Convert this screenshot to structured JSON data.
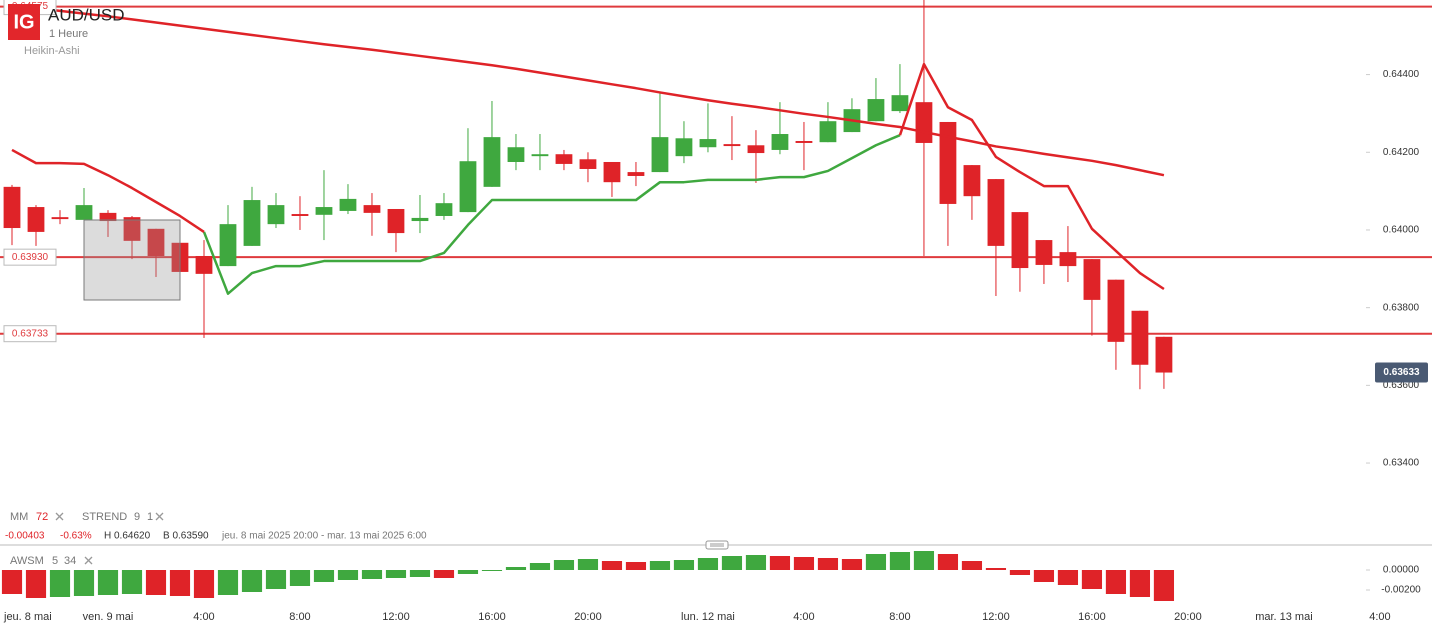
{
  "chart_data": {
    "type": "candlestick",
    "logo": "IG",
    "title": "AUD/USD",
    "subtitle": "1 Heure",
    "chart_style": "Heikin-Ashi",
    "up_color": "#3fa83f",
    "down_color": "#df2328",
    "xlim": [
      -0.5,
      59.17
    ],
    "xticks": [
      {
        "value": 0,
        "label": "jeu. 8 mai"
      },
      {
        "value": 4,
        "label": "ven. 9 mai"
      },
      {
        "value": 8,
        "label": "4:00"
      },
      {
        "value": 12,
        "label": "8:00"
      },
      {
        "value": 16,
        "label": "12:00"
      },
      {
        "value": 20,
        "label": "16:00"
      },
      {
        "value": 24,
        "label": "20:00"
      },
      {
        "value": 29,
        "label": "lun. 12 mai"
      },
      {
        "value": 33,
        "label": "4:00"
      },
      {
        "value": 37,
        "label": "8:00"
      },
      {
        "value": 41,
        "label": "12:00"
      },
      {
        "value": 45,
        "label": "16:00"
      },
      {
        "value": 49,
        "label": "20:00"
      },
      {
        "value": 53,
        "label": "mar. 13 mai"
      },
      {
        "value": 57,
        "label": "4:00"
      }
    ],
    "ylim": [
      0.63292,
      0.64592
    ],
    "yticks": [
      {
        "value": 0.644,
        "label": "0.64400"
      },
      {
        "value": 0.642,
        "label": "0.64200"
      },
      {
        "value": 0.64,
        "label": "0.64000"
      },
      {
        "value": 0.638,
        "label": "0.63800"
      },
      {
        "value": 0.636,
        "label": "0.63600"
      },
      {
        "value": 0.634,
        "label": "0.63400"
      }
    ],
    "candles": {
      "open": [
        0.64111,
        0.64059,
        0.64033,
        0.64026,
        0.64044,
        0.64033,
        0.64003,
        0.63967,
        0.63933,
        0.63907,
        0.63959,
        0.64015,
        0.64041,
        0.64039,
        0.64049,
        0.64064,
        0.64054,
        0.64023,
        0.64036,
        0.64046,
        0.64111,
        0.64175,
        0.6419,
        0.64195,
        0.64182,
        0.64175,
        0.64149,
        0.64149,
        0.6419,
        0.64213,
        0.64221,
        0.64218,
        0.64206,
        0.64229,
        0.64226,
        0.64252,
        0.6428,
        0.64306,
        0.64329,
        0.64278,
        0.64167,
        0.64131,
        0.64046,
        0.63974,
        0.63943,
        0.63925,
        0.63872,
        0.63792,
        0.63725
      ],
      "high": [
        0.64116,
        0.64064,
        0.64051,
        0.64108,
        0.64051,
        0.64036,
        0.64003,
        0.63974,
        0.63974,
        0.64064,
        0.64111,
        0.64095,
        0.64087,
        0.64154,
        0.64118,
        0.64095,
        0.64054,
        0.6409,
        0.64095,
        0.64262,
        0.64332,
        0.64247,
        0.64247,
        0.64206,
        0.642,
        0.64175,
        0.64175,
        0.64352,
        0.6428,
        0.64326,
        0.64293,
        0.64257,
        0.64329,
        0.64278,
        0.64329,
        0.64339,
        0.64391,
        0.64427,
        0.6462,
        0.64278,
        0.64167,
        0.64131,
        0.64046,
        0.63974,
        0.6401,
        0.63925,
        0.63872,
        0.63792,
        0.63725
      ],
      "low": [
        0.63961,
        0.63959,
        0.64015,
        0.64021,
        0.63982,
        0.63925,
        0.63879,
        0.63884,
        0.63722,
        0.63907,
        0.63959,
        0.64005,
        0.64,
        0.63974,
        0.64041,
        0.63985,
        0.63943,
        0.63992,
        0.64026,
        0.64046,
        0.64111,
        0.64154,
        0.64154,
        0.64154,
        0.64123,
        0.64085,
        0.64113,
        0.64149,
        0.64172,
        0.642,
        0.6418,
        0.64121,
        0.64195,
        0.64154,
        0.64226,
        0.64252,
        0.6428,
        0.64301,
        0.63933,
        0.63959,
        0.64026,
        0.6383,
        0.63841,
        0.63861,
        0.63866,
        0.63728,
        0.6364,
        0.6359,
        0.63591
      ],
      "close": [
        0.64005,
        0.63995,
        0.64028,
        0.64064,
        0.64023,
        0.63972,
        0.63933,
        0.63892,
        0.63887,
        0.64015,
        0.64077,
        0.64064,
        0.64036,
        0.64059,
        0.6408,
        0.64044,
        0.63992,
        0.64031,
        0.64069,
        0.64177,
        0.64239,
        0.64213,
        0.64195,
        0.6417,
        0.64157,
        0.64123,
        0.64139,
        0.64239,
        0.64236,
        0.64234,
        0.64216,
        0.64198,
        0.64247,
        0.64224,
        0.6428,
        0.64311,
        0.64337,
        0.64347,
        0.64224,
        0.64067,
        0.64087,
        0.63959,
        0.63902,
        0.6391,
        0.63907,
        0.6382,
        0.63712,
        0.63653,
        0.63633
      ]
    },
    "levels": [
      {
        "value": 0.64575,
        "label": "0.64575"
      },
      {
        "value": 0.6393,
        "label": "0.63930"
      },
      {
        "value": 0.63733,
        "label": "0.63733"
      }
    ],
    "level_color": "#df3a3d",
    "last_price": {
      "value": 0.63633,
      "label": "0.63633"
    },
    "indicators": {
      "ma": {
        "name": "MM",
        "period": "72",
        "color": "#df2328",
        "values": [
          0.64578,
          0.64571,
          0.64564,
          0.64557,
          0.6455,
          0.64542,
          0.64534,
          0.64526,
          0.64518,
          0.6451,
          0.64502,
          0.64494,
          0.64486,
          0.64478,
          0.64471,
          0.64464,
          0.64456,
          0.64448,
          0.6444,
          0.64432,
          0.64424,
          0.64415,
          0.64405,
          0.64395,
          0.64385,
          0.64375,
          0.64365,
          0.64354,
          0.64344,
          0.64334,
          0.64325,
          0.64317,
          0.64308,
          0.64299,
          0.64291,
          0.64282,
          0.64273,
          0.64265,
          0.64252,
          0.6424,
          0.64228,
          0.64215,
          0.64206,
          0.64196,
          0.64187,
          0.64178,
          0.64167,
          0.64154,
          0.64141
        ]
      },
      "strend": {
        "name": "STREND",
        "params": [
          "9",
          "1"
        ],
        "up_color": "#3fa83f",
        "down_color": "#df2328",
        "up_values": [
          null,
          null,
          null,
          null,
          null,
          null,
          null,
          null,
          0.63995,
          0.63836,
          0.63889,
          0.63907,
          0.63907,
          0.6392,
          0.6392,
          0.6392,
          0.6392,
          0.6392,
          0.63941,
          0.64013,
          0.64077,
          0.64077,
          0.64077,
          0.64077,
          0.64077,
          0.64077,
          0.64077,
          0.64123,
          0.64123,
          0.64129,
          0.64129,
          0.64129,
          0.64136,
          0.64136,
          0.64152,
          0.64185,
          0.64218,
          0.64244,
          null,
          null,
          null,
          null,
          null,
          null,
          null,
          null,
          null,
          null,
          null
        ],
        "down_values": [
          0.64206,
          0.64172,
          0.64172,
          0.6417,
          0.64141,
          0.64108,
          0.64072,
          0.64036,
          0.63995,
          null,
          null,
          null,
          null,
          null,
          null,
          null,
          null,
          null,
          null,
          null,
          null,
          null,
          null,
          null,
          null,
          null,
          null,
          null,
          null,
          null,
          null,
          null,
          null,
          null,
          null,
          null,
          null,
          0.64244,
          0.64427,
          0.64316,
          0.64283,
          0.64188,
          0.64149,
          0.64113,
          0.64113,
          0.64003,
          0.63946,
          0.63889,
          0.63848
        ]
      }
    },
    "summary": {
      "change": "-0.00403",
      "change_pct": "-0.63%",
      "high": "H 0.64620",
      "low": "B 0.63590",
      "range": "jeu. 8 mai 2025 20:00 - mar. 13 mai 2025 6:00"
    },
    "oscillator": {
      "name": "AWSM",
      "params": [
        "5",
        "34"
      ],
      "ylim": [
        -0.0035,
        0.0022
      ],
      "yticks": [
        {
          "value": 0,
          "label": "0.00000"
        },
        {
          "value": -0.002,
          "label": "-0.00200"
        }
      ],
      "values": [
        -0.0024,
        -0.0028,
        -0.0027,
        -0.0026,
        -0.0025,
        -0.0024,
        -0.0025,
        -0.0026,
        -0.0028,
        -0.0025,
        -0.0022,
        -0.0019,
        -0.0016,
        -0.0012,
        -0.001,
        -0.0009,
        -0.0008,
        -0.0007,
        -0.0008,
        -0.0004,
        -0.0001,
        0.0003,
        0.0007,
        0.001,
        0.0011,
        0.0009,
        0.0008,
        0.0009,
        0.001,
        0.0012,
        0.0014,
        0.0015,
        0.0014,
        0.0013,
        0.0012,
        0.0011,
        0.0016,
        0.0018,
        0.0019,
        0.0016,
        0.0009,
        0.0002,
        -0.0005,
        -0.0012,
        -0.0015,
        -0.0019,
        -0.0024,
        -0.0027,
        -0.0031
      ]
    }
  }
}
